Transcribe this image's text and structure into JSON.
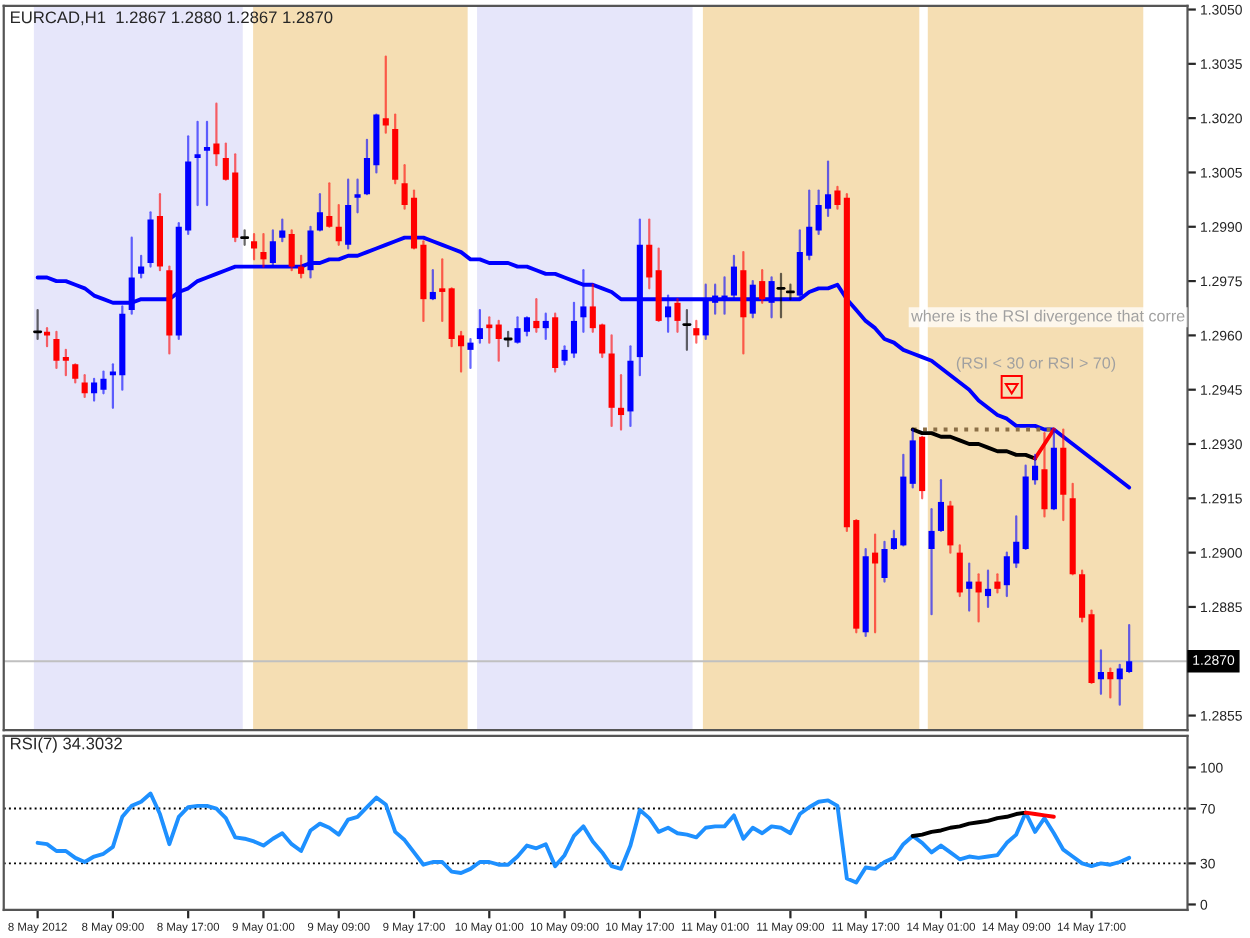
{
  "chart_data": [
    {
      "type": "candlestick",
      "title": "EURCAD,H1  1.2867 1.2880 1.2867 1.2870",
      "ohlc": [
        [
          1.2961,
          1.2967,
          1.2959,
          1.2961
        ],
        [
          1.2961,
          1.2962,
          1.2957,
          1.296
        ],
        [
          1.2959,
          1.2961,
          1.2951,
          1.2953
        ],
        [
          1.2954,
          1.2956,
          1.2949,
          1.2953
        ],
        [
          1.2952,
          1.2952,
          1.2947,
          1.2948
        ],
        [
          1.2947,
          1.2949,
          1.2943,
          1.2944
        ],
        [
          1.2944,
          1.2948,
          1.2942,
          1.2947
        ],
        [
          1.2945,
          1.295,
          1.2944,
          1.2948
        ],
        [
          1.2949,
          1.2952,
          1.294,
          1.295
        ],
        [
          1.2949,
          1.2968,
          1.2945,
          1.2966
        ],
        [
          1.2967,
          1.2987,
          1.2966,
          1.2976
        ],
        [
          1.2977,
          1.2982,
          1.2976,
          1.2979
        ],
        [
          1.298,
          1.2994,
          1.2979,
          1.2992
        ],
        [
          1.2993,
          1.2999,
          1.2978,
          1.2979
        ],
        [
          1.2978,
          1.2979,
          1.2955,
          1.296
        ],
        [
          1.296,
          1.2991,
          1.2959,
          1.299
        ],
        [
          1.2989,
          1.3015,
          1.2988,
          1.3008
        ],
        [
          1.3009,
          1.3019,
          1.2996,
          1.301
        ],
        [
          1.3011,
          1.3019,
          1.2996,
          1.3012
        ],
        [
          1.3013,
          1.3024,
          1.3007,
          1.301
        ],
        [
          1.3009,
          1.3013,
          1.3003,
          1.3003
        ],
        [
          1.3005,
          1.301,
          1.2986,
          1.2987
        ],
        [
          1.2987,
          1.2989,
          1.2985,
          1.2987
        ],
        [
          1.2986,
          1.2988,
          1.2981,
          1.2984
        ],
        [
          1.2983,
          1.2988,
          1.2979,
          1.2981
        ],
        [
          1.298,
          1.2989,
          1.2979,
          1.2986
        ],
        [
          1.2987,
          1.2992,
          1.2986,
          1.2989
        ],
        [
          1.2988,
          1.2989,
          1.2978,
          1.2979
        ],
        [
          1.2979,
          1.2982,
          1.2976,
          1.2977
        ],
        [
          1.2978,
          1.299,
          1.2976,
          1.2989
        ],
        [
          1.2989,
          1.2999,
          1.2989,
          1.2994
        ],
        [
          1.2993,
          1.3002,
          1.299,
          1.299
        ],
        [
          1.299,
          1.2996,
          1.2985,
          1.2986
        ],
        [
          1.2985,
          1.3003,
          1.2984,
          1.2996
        ],
        [
          1.2998,
          1.3003,
          1.2994,
          1.2999
        ],
        [
          1.2999,
          1.3014,
          1.2999,
          1.3009
        ],
        [
          1.3007,
          1.3021,
          1.3005,
          1.3021
        ],
        [
          1.302,
          1.3037,
          1.3016,
          1.3018
        ],
        [
          1.3017,
          1.3021,
          1.3002,
          1.3003
        ],
        [
          1.3002,
          1.3007,
          1.2995,
          1.2996
        ],
        [
          1.2998,
          1.3,
          1.2984,
          1.2984
        ],
        [
          1.2985,
          1.2986,
          1.2964,
          1.297
        ],
        [
          1.297,
          1.2978,
          1.297,
          1.2972
        ],
        [
          1.2973,
          1.2981,
          1.2964,
          1.2972
        ],
        [
          1.2973,
          1.2973,
          1.2957,
          1.2959
        ],
        [
          1.296,
          1.2961,
          1.295,
          1.2957
        ],
        [
          1.2956,
          1.2959,
          1.2951,
          1.2958
        ],
        [
          1.2959,
          1.2967,
          1.2958,
          1.2962
        ],
        [
          1.2963,
          1.2965,
          1.2958,
          1.2962
        ],
        [
          1.2963,
          1.2964,
          1.2953,
          1.2959
        ],
        [
          1.2959,
          1.2961,
          1.2957,
          1.2959
        ],
        [
          1.2958,
          1.2965,
          1.2958,
          1.2962
        ],
        [
          1.2961,
          1.2965,
          1.296,
          1.2965
        ],
        [
          1.2964,
          1.297,
          1.2961,
          1.2962
        ],
        [
          1.2962,
          1.2966,
          1.2959,
          1.2964
        ],
        [
          1.2965,
          1.2966,
          1.295,
          1.2951
        ],
        [
          1.2953,
          1.2957,
          1.2952,
          1.2956
        ],
        [
          1.2955,
          1.2969,
          1.2954,
          1.2964
        ],
        [
          1.2965,
          1.2978,
          1.2961,
          1.2968
        ],
        [
          1.2968,
          1.2974,
          1.2961,
          1.2962
        ],
        [
          1.2963,
          1.2963,
          1.2954,
          1.2955
        ],
        [
          1.2955,
          1.296,
          1.2935,
          1.294
        ],
        [
          1.294,
          1.2949,
          1.2934,
          1.2938
        ],
        [
          1.2939,
          1.2957,
          1.2935,
          1.2953
        ],
        [
          1.2954,
          1.2992,
          1.2949,
          1.2985
        ],
        [
          1.2985,
          1.2992,
          1.2973,
          1.2976
        ],
        [
          1.2978,
          1.2984,
          1.2964,
          1.2964
        ],
        [
          1.2965,
          1.2971,
          1.2961,
          1.2968
        ],
        [
          1.2969,
          1.297,
          1.2961,
          1.2964
        ],
        [
          1.2963,
          1.2967,
          1.2956,
          1.2963
        ],
        [
          1.2962,
          1.2964,
          1.2958,
          1.296
        ],
        [
          1.296,
          1.2974,
          1.2959,
          1.297
        ],
        [
          1.2969,
          1.2974,
          1.2966,
          1.2971
        ],
        [
          1.297,
          1.2976,
          1.2966,
          1.2971
        ],
        [
          1.2971,
          1.2982,
          1.297,
          1.2979
        ],
        [
          1.2978,
          1.2983,
          1.2955,
          1.2965
        ],
        [
          1.2966,
          1.2975,
          1.2965,
          1.2974
        ],
        [
          1.2975,
          1.2978,
          1.2969,
          1.297
        ],
        [
          1.2969,
          1.2976,
          1.2965,
          1.2975
        ],
        [
          1.2973,
          1.2977,
          1.2965,
          1.2973
        ],
        [
          1.2972,
          1.2974,
          1.297,
          1.2972
        ],
        [
          1.2971,
          1.2989,
          1.297,
          1.2983
        ],
        [
          1.2982,
          1.3,
          1.2981,
          1.299
        ],
        [
          1.2989,
          1.3,
          1.2988,
          1.2996
        ],
        [
          1.2995,
          1.3008,
          1.2993,
          1.2999
        ],
        [
          1.3,
          1.3001,
          1.2995,
          1.2996
        ],
        [
          1.2998,
          1.2999,
          1.2906,
          1.2907
        ],
        [
          1.2909,
          1.2909,
          1.2878,
          1.2879
        ],
        [
          1.2878,
          1.2901,
          1.2877,
          1.2899
        ],
        [
          1.29,
          1.2905,
          1.2878,
          1.2897
        ],
        [
          1.2893,
          1.2903,
          1.2892,
          1.2901
        ],
        [
          1.2901,
          1.2906,
          1.2901,
          1.2904
        ],
        [
          1.2902,
          1.2927,
          1.2902,
          1.2921
        ],
        [
          1.2919,
          1.2934,
          1.2918,
          1.2931
        ],
        [
          1.2932,
          1.2932,
          1.2915,
          1.2917
        ],
        [
          1.2901,
          1.2912,
          1.2883,
          1.2906
        ],
        [
          1.2906,
          1.292,
          1.2906,
          1.2914
        ],
        [
          1.2913,
          1.2914,
          1.29,
          1.2902
        ],
        [
          1.29,
          1.2902,
          1.2888,
          1.2889
        ],
        [
          1.289,
          1.2897,
          1.2884,
          1.2892
        ],
        [
          1.2892,
          1.2894,
          1.2881,
          1.2889
        ],
        [
          1.2888,
          1.2895,
          1.2885,
          1.289
        ],
        [
          1.2892,
          1.2894,
          1.2889,
          1.289
        ],
        [
          1.2891,
          1.29,
          1.2888,
          1.2899
        ],
        [
          1.2897,
          1.291,
          1.2896,
          1.2903
        ],
        [
          1.2901,
          1.2924,
          1.2901,
          1.2921
        ],
        [
          1.292,
          1.2927,
          1.2919,
          1.2924
        ],
        [
          1.2923,
          1.2933,
          1.291,
          1.2912
        ],
        [
          1.2912,
          1.2934,
          1.2912,
          1.2929
        ],
        [
          1.2929,
          1.2934,
          1.2909,
          1.2916
        ],
        [
          1.2915,
          1.2919,
          1.2894,
          1.2894
        ],
        [
          1.2894,
          1.2895,
          1.2881,
          1.2882
        ],
        [
          1.2883,
          1.2884,
          1.2864,
          1.2864
        ],
        [
          1.2865,
          1.2873,
          1.2861,
          1.2867
        ],
        [
          1.2867,
          1.2868,
          1.286,
          1.2865
        ],
        [
          1.2865,
          1.2869,
          1.2858,
          1.2868
        ],
        [
          1.2867,
          1.288,
          1.2867,
          1.287
        ]
      ],
      "colors": [
        "#000000",
        "#ff0000",
        "#ff0000",
        "#ff0000",
        "#ff0000",
        "#ff0000",
        "#0000ff",
        "#0000ff",
        "#0000ff",
        "#0000ff",
        "#0000ff",
        "#0000ff",
        "#0000ff",
        "#ff0000",
        "#ff0000",
        "#0000ff",
        "#0000ff",
        "#0000ff",
        "#0000ff",
        "#ff0000",
        "#ff0000",
        "#ff0000",
        "#000000",
        "#ff0000",
        "#ff0000",
        "#0000ff",
        "#0000ff",
        "#ff0000",
        "#ff0000",
        "#0000ff",
        "#0000ff",
        "#ff0000",
        "#ff0000",
        "#0000ff",
        "#0000ff",
        "#0000ff",
        "#0000ff",
        "#ff0000",
        "#ff0000",
        "#ff0000",
        "#ff0000",
        "#ff0000",
        "#0000ff",
        "#ff0000",
        "#ff0000",
        "#ff0000",
        "#0000ff",
        "#0000ff",
        "#ff0000",
        "#ff0000",
        "#000000",
        "#0000ff",
        "#0000ff",
        "#ff0000",
        "#0000ff",
        "#ff0000",
        "#0000ff",
        "#0000ff",
        "#0000ff",
        "#ff0000",
        "#ff0000",
        "#ff0000",
        "#ff0000",
        "#0000ff",
        "#0000ff",
        "#ff0000",
        "#ff0000",
        "#0000ff",
        "#ff0000",
        "#000000",
        "#ff0000",
        "#0000ff",
        "#0000ff",
        "#0000ff",
        "#0000ff",
        "#ff0000",
        "#0000ff",
        "#ff0000",
        "#0000ff",
        "#000000",
        "#000000",
        "#0000ff",
        "#0000ff",
        "#0000ff",
        "#0000ff",
        "#ff0000",
        "#ff0000",
        "#ff0000",
        "#0000ff",
        "#ff0000",
        "#0000ff",
        "#0000ff",
        "#0000ff",
        "#0000ff",
        "#ff0000",
        "#0000ff",
        "#0000ff",
        "#ff0000",
        "#ff0000",
        "#0000ff",
        "#ff0000",
        "#0000ff",
        "#ff0000",
        "#0000ff",
        "#0000ff",
        "#0000ff",
        "#0000ff",
        "#ff0000",
        "#0000ff",
        "#ff0000",
        "#ff0000",
        "#ff0000",
        "#ff0000",
        "#0000ff",
        "#ff0000",
        "#0000ff",
        "#0000ff"
      ],
      "series": [
        {
          "type": "line",
          "color": "#0000ff",
          "values": [
            1.2976,
            1.2976,
            1.2975,
            1.2975,
            1.2974,
            1.2973,
            1.2971,
            1.297,
            1.2969,
            1.2969,
            1.2969,
            1.297,
            1.297,
            1.297,
            1.297,
            1.2972,
            1.2973,
            1.2975,
            1.2976,
            1.2977,
            1.2978,
            1.2979,
            1.2979,
            1.2979,
            1.2979,
            1.2979,
            1.2979,
            1.2979,
            1.2979,
            1.298,
            1.298,
            1.2981,
            1.2981,
            1.2982,
            1.2982,
            1.2983,
            1.2984,
            1.2985,
            1.2986,
            1.2987,
            1.2987,
            1.2987,
            1.2986,
            1.2985,
            1.2984,
            1.2983,
            1.2981,
            1.2981,
            1.298,
            1.298,
            1.298,
            1.2979,
            1.2979,
            1.2978,
            1.2977,
            1.2977,
            1.2976,
            1.2975,
            1.2974,
            1.2974,
            1.2973,
            1.2972,
            1.297,
            1.297,
            1.297,
            1.297,
            1.297,
            1.297,
            1.297,
            1.297,
            1.297,
            1.297,
            1.297,
            1.297,
            1.297,
            1.297,
            1.297,
            1.297,
            1.297,
            1.297,
            1.297,
            1.297,
            1.2972,
            1.2973,
            1.2973,
            1.2974,
            1.297,
            1.2967,
            1.2964,
            1.2962,
            1.2959,
            1.2958,
            1.2956,
            1.2955,
            1.2954,
            1.2953,
            1.2951,
            1.2949,
            1.2947,
            1.2945,
            1.2942,
            1.294,
            1.2938,
            1.2937,
            1.2935,
            1.2935,
            1.2935,
            1.2934,
            1.2934,
            1.2932,
            1.293,
            1.2928,
            1.2926,
            1.2924,
            1.2922,
            1.292,
            1.2918
          ]
        },
        {
          "type": "line",
          "color": "#8b6f47",
          "line_style": "dotted",
          "values": [
            null,
            null,
            null,
            null,
            null,
            null,
            null,
            null,
            null,
            null,
            null,
            null,
            null,
            null,
            null,
            null,
            null,
            null,
            null,
            null,
            null,
            null,
            null,
            null,
            null,
            null,
            null,
            null,
            null,
            null,
            null,
            null,
            null,
            null,
            null,
            null,
            null,
            null,
            null,
            null,
            null,
            null,
            null,
            null,
            null,
            null,
            null,
            null,
            null,
            null,
            null,
            null,
            null,
            null,
            null,
            null,
            null,
            null,
            null,
            null,
            null,
            null,
            null,
            null,
            null,
            null,
            null,
            null,
            null,
            null,
            null,
            null,
            null,
            null,
            null,
            null,
            null,
            null,
            null,
            null,
            null,
            null,
            null,
            null,
            null,
            null,
            null,
            null,
            null,
            null,
            null,
            null,
            null,
            1.2934,
            1.2934,
            1.2934,
            1.2934,
            1.2934,
            1.2934,
            1.2934,
            1.2934,
            1.2934,
            1.2934,
            1.2934,
            1.2934,
            1.2934,
            1.2934,
            1.2934,
            1.2934,
            null,
            null,
            null,
            null,
            null,
            null,
            null,
            null
          ]
        },
        {
          "type": "line",
          "color": "#000000",
          "values": [
            null,
            null,
            null,
            null,
            null,
            null,
            null,
            null,
            null,
            null,
            null,
            null,
            null,
            null,
            null,
            null,
            null,
            null,
            null,
            null,
            null,
            null,
            null,
            null,
            null,
            null,
            null,
            null,
            null,
            null,
            null,
            null,
            null,
            null,
            null,
            null,
            null,
            null,
            null,
            null,
            null,
            null,
            null,
            null,
            null,
            null,
            null,
            null,
            null,
            null,
            null,
            null,
            null,
            null,
            null,
            null,
            null,
            null,
            null,
            null,
            null,
            null,
            null,
            null,
            null,
            null,
            null,
            null,
            null,
            null,
            null,
            null,
            null,
            null,
            null,
            null,
            null,
            null,
            null,
            null,
            null,
            null,
            null,
            null,
            null,
            null,
            null,
            null,
            null,
            null,
            null,
            null,
            null,
            1.2934,
            1.2933,
            1.2933,
            1.2932,
            1.2932,
            1.2931,
            1.293,
            1.293,
            1.2929,
            1.2928,
            1.2928,
            1.2927,
            1.2927,
            1.2926,
            null,
            null,
            null,
            null,
            null,
            null,
            null,
            null,
            null,
            null
          ]
        },
        {
          "type": "line",
          "color": "#ff0000",
          "values": [
            null,
            null,
            null,
            null,
            null,
            null,
            null,
            null,
            null,
            null,
            null,
            null,
            null,
            null,
            null,
            null,
            null,
            null,
            null,
            null,
            null,
            null,
            null,
            null,
            null,
            null,
            null,
            null,
            null,
            null,
            null,
            null,
            null,
            null,
            null,
            null,
            null,
            null,
            null,
            null,
            null,
            null,
            null,
            null,
            null,
            null,
            null,
            null,
            null,
            null,
            null,
            null,
            null,
            null,
            null,
            null,
            null,
            null,
            null,
            null,
            null,
            null,
            null,
            null,
            null,
            null,
            null,
            null,
            null,
            null,
            null,
            null,
            null,
            null,
            null,
            null,
            null,
            null,
            null,
            null,
            null,
            null,
            null,
            null,
            null,
            null,
            null,
            null,
            null,
            null,
            null,
            null,
            null,
            null,
            null,
            null,
            null,
            null,
            null,
            null,
            null,
            null,
            null,
            null,
            null,
            null,
            1.2926,
            1.293,
            1.2934,
            null,
            null,
            null,
            null,
            null,
            null,
            null,
            null
          ]
        }
      ],
      "ylim": [
        1.2851,
        1.3051
      ],
      "yticks": [
        {
          "value": 1.2855,
          "label": "1.2855"
        },
        {
          "value": 1.287,
          "label": null
        },
        {
          "value": 1.2885,
          "label": "1.2885"
        },
        {
          "value": 1.29,
          "label": "1.2900"
        },
        {
          "value": 1.2915,
          "label": "1.2915"
        },
        {
          "value": 1.293,
          "label": "1.2930"
        },
        {
          "value": 1.2945,
          "label": "1.2945"
        },
        {
          "value": 1.296,
          "label": "1.2960"
        },
        {
          "value": 1.2975,
          "label": "1.2975"
        },
        {
          "value": 1.299,
          "label": "1.2990"
        },
        {
          "value": 1.3005,
          "label": "1.3005"
        },
        {
          "value": 1.302,
          "label": "1.3020"
        },
        {
          "value": 1.3035,
          "label": "1.3035"
        },
        {
          "value": 1.305,
          "label": "1.3050"
        }
      ],
      "ref_lines": [
        {
          "axis": "y",
          "value": 1.287,
          "label": "1.2870",
          "color": "#c0c0c0",
          "line_style": "solid"
        }
      ],
      "annotations": [
        "where is the RSI divergence that corre",
        "(RSI < 30 or RSI > 70)"
      ],
      "tick_labels": "y"
    },
    {
      "type": "line",
      "title": "RSI(7) 34.3032",
      "categories": [
        "8 May 2012",
        null,
        null,
        null,
        null,
        null,
        null,
        null,
        "8 May 09:00",
        null,
        null,
        null,
        null,
        null,
        null,
        null,
        "8 May 17:00",
        null,
        null,
        null,
        null,
        null,
        null,
        null,
        "9 May 01:00",
        null,
        null,
        null,
        null,
        null,
        null,
        null,
        "9 May 09:00",
        null,
        null,
        null,
        null,
        null,
        null,
        null,
        "9 May 17:00",
        null,
        null,
        null,
        null,
        null,
        null,
        null,
        "10 May 01:00",
        null,
        null,
        null,
        null,
        null,
        null,
        null,
        "10 May 09:00",
        null,
        null,
        null,
        null,
        null,
        null,
        null,
        "10 May 17:00",
        null,
        null,
        null,
        null,
        null,
        null,
        null,
        "11 May 01:00",
        null,
        null,
        null,
        null,
        null,
        null,
        null,
        "11 May 09:00",
        null,
        null,
        null,
        null,
        null,
        null,
        null,
        "11 May 17:00",
        null,
        null,
        null,
        null,
        null,
        null,
        null,
        "14 May 01:00",
        null,
        null,
        null,
        null,
        null,
        null,
        null,
        "14 May 09:00",
        null,
        null,
        null,
        null,
        null,
        null,
        null,
        "14 May 17:00",
        null,
        null,
        null,
        null
      ],
      "series": [
        {
          "color": "#1e90ff",
          "values": [
            45,
            44,
            39,
            39,
            34,
            31,
            35,
            37,
            42,
            64,
            72,
            75,
            81,
            66,
            44,
            64,
            71,
            72,
            72,
            70,
            63,
            49,
            48,
            46,
            43,
            48,
            52,
            44,
            39,
            54,
            59,
            56,
            51,
            62,
            64,
            71,
            78,
            73,
            53,
            47,
            38,
            29,
            31,
            31,
            24,
            23,
            26,
            31,
            31,
            29,
            29,
            35,
            43,
            41,
            44,
            28,
            36,
            50,
            57,
            46,
            38,
            28,
            26,
            43,
            69,
            63,
            53,
            56,
            52,
            51,
            49,
            56,
            57,
            57,
            65,
            48,
            56,
            52,
            57,
            56,
            52,
            66,
            71,
            75,
            76,
            72,
            19,
            16,
            27,
            26,
            31,
            34,
            44,
            50,
            45,
            38,
            43,
            38,
            33,
            35,
            34,
            35,
            36,
            45,
            51,
            67,
            53,
            63,
            52,
            40,
            35,
            30,
            28,
            30,
            29,
            31,
            34
          ]
        },
        {
          "color": "#000000",
          "values": [
            null,
            null,
            null,
            null,
            null,
            null,
            null,
            null,
            null,
            null,
            null,
            null,
            null,
            null,
            null,
            null,
            null,
            null,
            null,
            null,
            null,
            null,
            null,
            null,
            null,
            null,
            null,
            null,
            null,
            null,
            null,
            null,
            null,
            null,
            null,
            null,
            null,
            null,
            null,
            null,
            null,
            null,
            null,
            null,
            null,
            null,
            null,
            null,
            null,
            null,
            null,
            null,
            null,
            null,
            null,
            null,
            null,
            null,
            null,
            null,
            null,
            null,
            null,
            null,
            null,
            null,
            null,
            null,
            null,
            null,
            null,
            null,
            null,
            null,
            null,
            null,
            null,
            null,
            null,
            null,
            null,
            null,
            null,
            null,
            null,
            null,
            null,
            null,
            null,
            null,
            null,
            null,
            null,
            50,
            51,
            53,
            54,
            56,
            57,
            59,
            60,
            61,
            63,
            64,
            66,
            67,
            null,
            null,
            null,
            null,
            null,
            null,
            null,
            null,
            null,
            null,
            null
          ]
        },
        {
          "color": "#ff0000",
          "values": [
            null,
            null,
            null,
            null,
            null,
            null,
            null,
            null,
            null,
            null,
            null,
            null,
            null,
            null,
            null,
            null,
            null,
            null,
            null,
            null,
            null,
            null,
            null,
            null,
            null,
            null,
            null,
            null,
            null,
            null,
            null,
            null,
            null,
            null,
            null,
            null,
            null,
            null,
            null,
            null,
            null,
            null,
            null,
            null,
            null,
            null,
            null,
            null,
            null,
            null,
            null,
            null,
            null,
            null,
            null,
            null,
            null,
            null,
            null,
            null,
            null,
            null,
            null,
            null,
            null,
            null,
            null,
            null,
            null,
            null,
            null,
            null,
            null,
            null,
            null,
            null,
            null,
            null,
            null,
            null,
            null,
            null,
            null,
            null,
            null,
            null,
            null,
            null,
            null,
            null,
            null,
            null,
            null,
            null,
            null,
            null,
            null,
            null,
            null,
            null,
            null,
            null,
            null,
            null,
            null,
            67,
            66,
            65,
            64,
            null,
            null,
            null,
            null,
            null,
            null,
            null,
            null
          ]
        }
      ],
      "ylim": [
        -4,
        123
      ],
      "yticks": [
        0,
        30,
        70,
        100
      ],
      "ref_lines": [
        {
          "axis": "y",
          "value": 70,
          "color": "#000000",
          "line_style": "dotted"
        },
        {
          "axis": "y",
          "value": 30,
          "color": "#000000",
          "line_style": "dotted"
        }
      ]
    }
  ]
}
